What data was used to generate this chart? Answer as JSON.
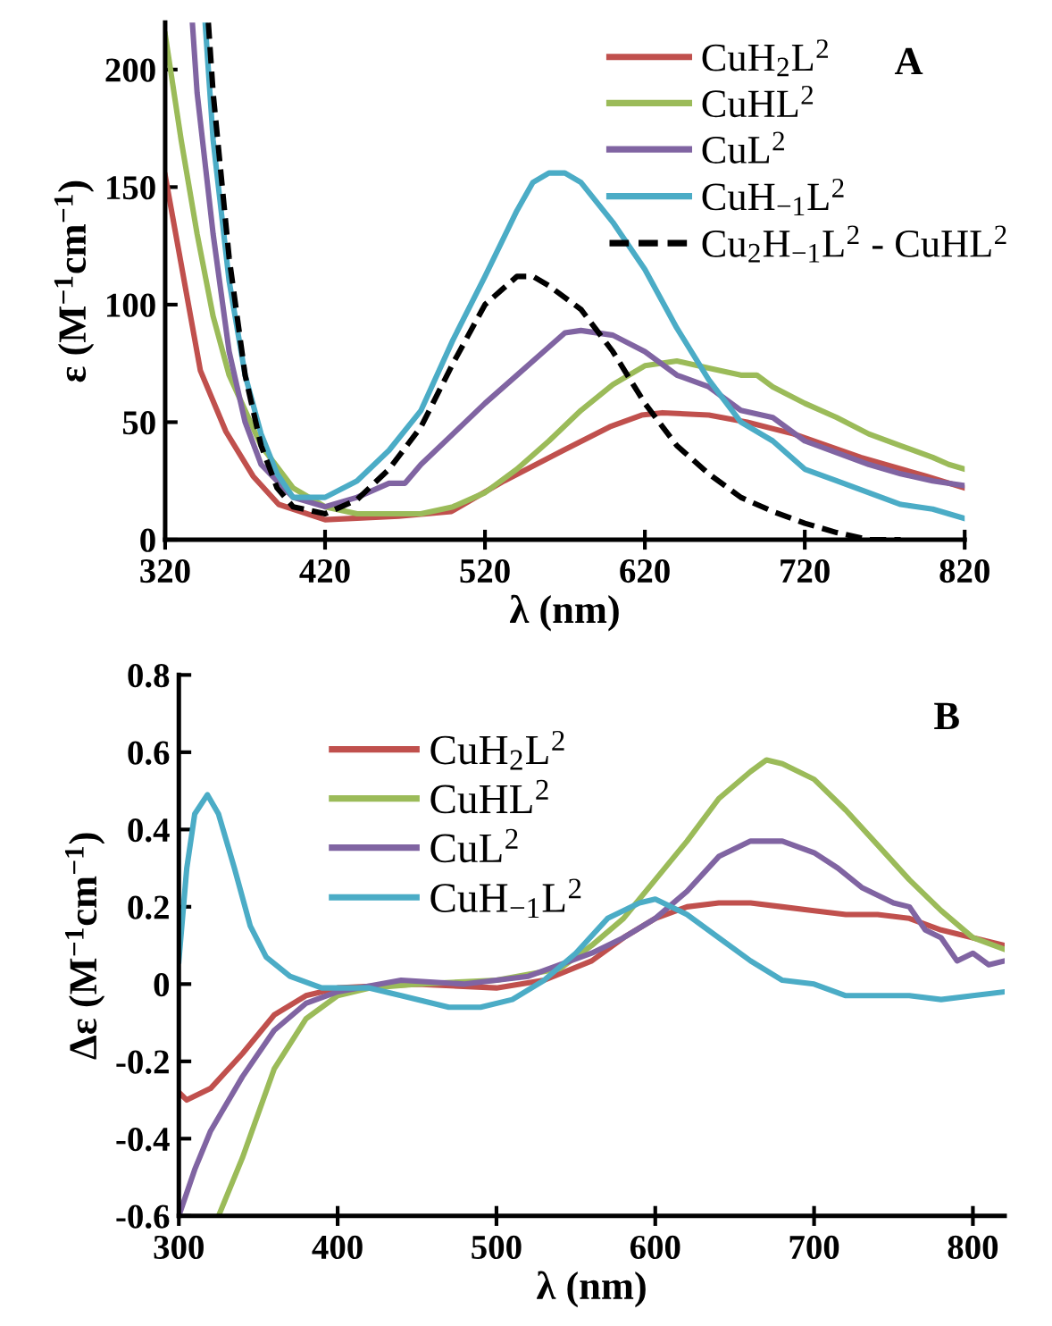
{
  "chart_data": [
    {
      "type": "line",
      "xlabel": "λ (nm)",
      "ylabel": "ε (M$^{−1}$cm$^{−1}$)",
      "annotations": [
        "A"
      ],
      "xlim": [
        320,
        820
      ],
      "ylim": [
        0,
        220
      ],
      "xticks": [
        320,
        420,
        520,
        620,
        720,
        820
      ],
      "yticks": [
        0,
        50,
        100,
        150,
        200
      ],
      "grid": false,
      "legend": "top right",
      "marker": "none",
      "series": [
        {
          "name": "CuH$_{2}$L$^{2}$",
          "color": "#c0504d",
          "x": [
            320,
            342,
            358,
            375,
            391,
            420,
            466,
            499,
            532,
            569,
            598,
            618,
            631,
            660,
            684,
            713,
            755,
            796,
            820
          ],
          "values": [
            155,
            72,
            46,
            27,
            15,
            8.5,
            10,
            12,
            25,
            38,
            48,
            53,
            54,
            53,
            50,
            45,
            35,
            27,
            22
          ]
        },
        {
          "name": "CuHL$^{2}$",
          "color": "#9bbb59",
          "x": [
            320,
            330,
            340,
            350,
            360,
            380,
            400,
            420,
            440,
            480,
            500,
            520,
            540,
            560,
            580,
            600,
            620,
            640,
            660,
            680,
            690,
            700,
            720,
            740,
            760,
            780,
            800,
            810,
            820
          ],
          "values": [
            215,
            170,
            130,
            95,
            70,
            40,
            22,
            14,
            11,
            11,
            14,
            20,
            30,
            42,
            55,
            66,
            74,
            76,
            73,
            70,
            70,
            65,
            58,
            52,
            45,
            40,
            35,
            32,
            30
          ]
        },
        {
          "name": "CuL$^{2}$",
          "color": "#8064a2",
          "x": [
            337,
            340,
            350,
            360,
            370,
            380,
            400,
            420,
            440,
            460,
            470,
            480,
            500,
            520,
            540,
            560,
            570,
            580,
            600,
            620,
            640,
            660,
            680,
            700,
            720,
            740,
            760,
            780,
            800,
            820
          ],
          "values": [
            220,
            190,
            130,
            80,
            50,
            32,
            18,
            14,
            18,
            24,
            24,
            32,
            45,
            58,
            70,
            82,
            88,
            89,
            87,
            80,
            70,
            65,
            55,
            52,
            42,
            37,
            32,
            28,
            25,
            23
          ]
        },
        {
          "name": "CuH$_{−1}$L$^{2}$",
          "color": "#4bacc6",
          "x": [
            345,
            350,
            360,
            370,
            380,
            390,
            400,
            420,
            440,
            460,
            480,
            500,
            520,
            540,
            550,
            560,
            570,
            580,
            600,
            620,
            640,
            660,
            680,
            700,
            720,
            740,
            760,
            780,
            800,
            810,
            820
          ],
          "values": [
            220,
            170,
            110,
            70,
            45,
            28,
            18,
            18,
            25,
            38,
            55,
            85,
            112,
            140,
            152,
            156,
            156,
            152,
            135,
            115,
            90,
            68,
            50,
            42,
            30,
            25,
            20,
            15,
            13,
            11,
            9
          ]
        },
        {
          "name": "Cu$_{2}$H$_{−1}$L$^{2}$ - CuHL$^{2}$",
          "color": "#000000",
          "line_style": "dashed",
          "x": [
            347,
            350,
            360,
            370,
            380,
            390,
            400,
            420,
            440,
            460,
            480,
            500,
            520,
            540,
            550,
            560,
            580,
            600,
            620,
            640,
            660,
            680,
            700,
            720,
            740,
            760,
            780
          ],
          "values": [
            220,
            190,
            120,
            70,
            40,
            22,
            14,
            11,
            17,
            30,
            48,
            75,
            100,
            112,
            112,
            108,
            98,
            80,
            58,
            40,
            28,
            18,
            12,
            7,
            3,
            0,
            0
          ]
        }
      ]
    },
    {
      "type": "line",
      "xlabel": "λ (nm)",
      "ylabel": "Δε (M$^{−1}$cm$^{−1}$)",
      "annotations": [
        "B"
      ],
      "xlim": [
        300,
        820
      ],
      "ylim": [
        -0.6,
        0.8
      ],
      "xticks": [
        300,
        400,
        500,
        600,
        700,
        800
      ],
      "yticks": [
        {
          "value": -0.6,
          "label": "-0.6"
        },
        {
          "value": -0.4,
          "label": "-0.4"
        },
        {
          "value": -0.2,
          "label": "-0.2"
        },
        0,
        0.2,
        0.4,
        0.6,
        0.8
      ],
      "grid": false,
      "legend": "top left",
      "marker": "none",
      "series": [
        {
          "name": "CuH$_{2}$L$^{2}$",
          "color": "#c0504d",
          "x": [
            300,
            305,
            320,
            340,
            360,
            380,
            400,
            450,
            500,
            530,
            560,
            580,
            600,
            620,
            640,
            660,
            680,
            700,
            720,
            740,
            760,
            780,
            800,
            820
          ],
          "values": [
            -0.28,
            -0.3,
            -0.27,
            -0.18,
            -0.08,
            -0.03,
            -0.01,
            0,
            -0.01,
            0.01,
            0.06,
            0.12,
            0.17,
            0.2,
            0.21,
            0.21,
            0.2,
            0.19,
            0.18,
            0.18,
            0.17,
            0.14,
            0.12,
            0.1
          ]
        },
        {
          "name": "CuHL$^{2}$",
          "color": "#9bbb59",
          "x": [
            325,
            340,
            360,
            380,
            400,
            420,
            450,
            500,
            540,
            560,
            580,
            600,
            620,
            640,
            660,
            670,
            680,
            700,
            720,
            740,
            760,
            780,
            800,
            820
          ],
          "values": [
            -0.6,
            -0.45,
            -0.22,
            -0.09,
            -0.03,
            -0.01,
            0,
            0.01,
            0.04,
            0.1,
            0.17,
            0.27,
            0.37,
            0.48,
            0.55,
            0.58,
            0.57,
            0.53,
            0.45,
            0.36,
            0.27,
            0.19,
            0.12,
            0.09
          ]
        },
        {
          "name": "CuL$^{2}$",
          "color": "#8064a2",
          "x": [
            300,
            310,
            320,
            340,
            360,
            380,
            400,
            440,
            480,
            500,
            520,
            540,
            560,
            580,
            600,
            620,
            640,
            660,
            680,
            700,
            715,
            730,
            750,
            760,
            770,
            780,
            790,
            800,
            810,
            820
          ],
          "values": [
            -0.6,
            -0.48,
            -0.38,
            -0.24,
            -0.12,
            -0.05,
            -0.02,
            0.01,
            0,
            0.01,
            0.02,
            0.05,
            0.08,
            0.12,
            0.17,
            0.24,
            0.33,
            0.37,
            0.37,
            0.34,
            0.3,
            0.25,
            0.21,
            0.2,
            0.14,
            0.12,
            0.06,
            0.08,
            0.05,
            0.06
          ]
        },
        {
          "name": "CuH$_{−1}$L$^{2}$",
          "color": "#4bacc6",
          "x": [
            300,
            305,
            310,
            318,
            325,
            335,
            345,
            355,
            370,
            390,
            420,
            440,
            470,
            490,
            510,
            530,
            550,
            570,
            590,
            600,
            620,
            640,
            660,
            680,
            700,
            720,
            740,
            760,
            780,
            800,
            820
          ],
          "values": [
            0.06,
            0.3,
            0.44,
            0.49,
            0.44,
            0.3,
            0.15,
            0.07,
            0.02,
            -0.01,
            -0.01,
            -0.03,
            -0.06,
            -0.06,
            -0.04,
            0.01,
            0.08,
            0.17,
            0.21,
            0.22,
            0.18,
            0.12,
            0.06,
            0.01,
            0,
            -0.03,
            -0.03,
            -0.03,
            -0.04,
            -0.03,
            -0.02
          ]
        }
      ]
    }
  ]
}
